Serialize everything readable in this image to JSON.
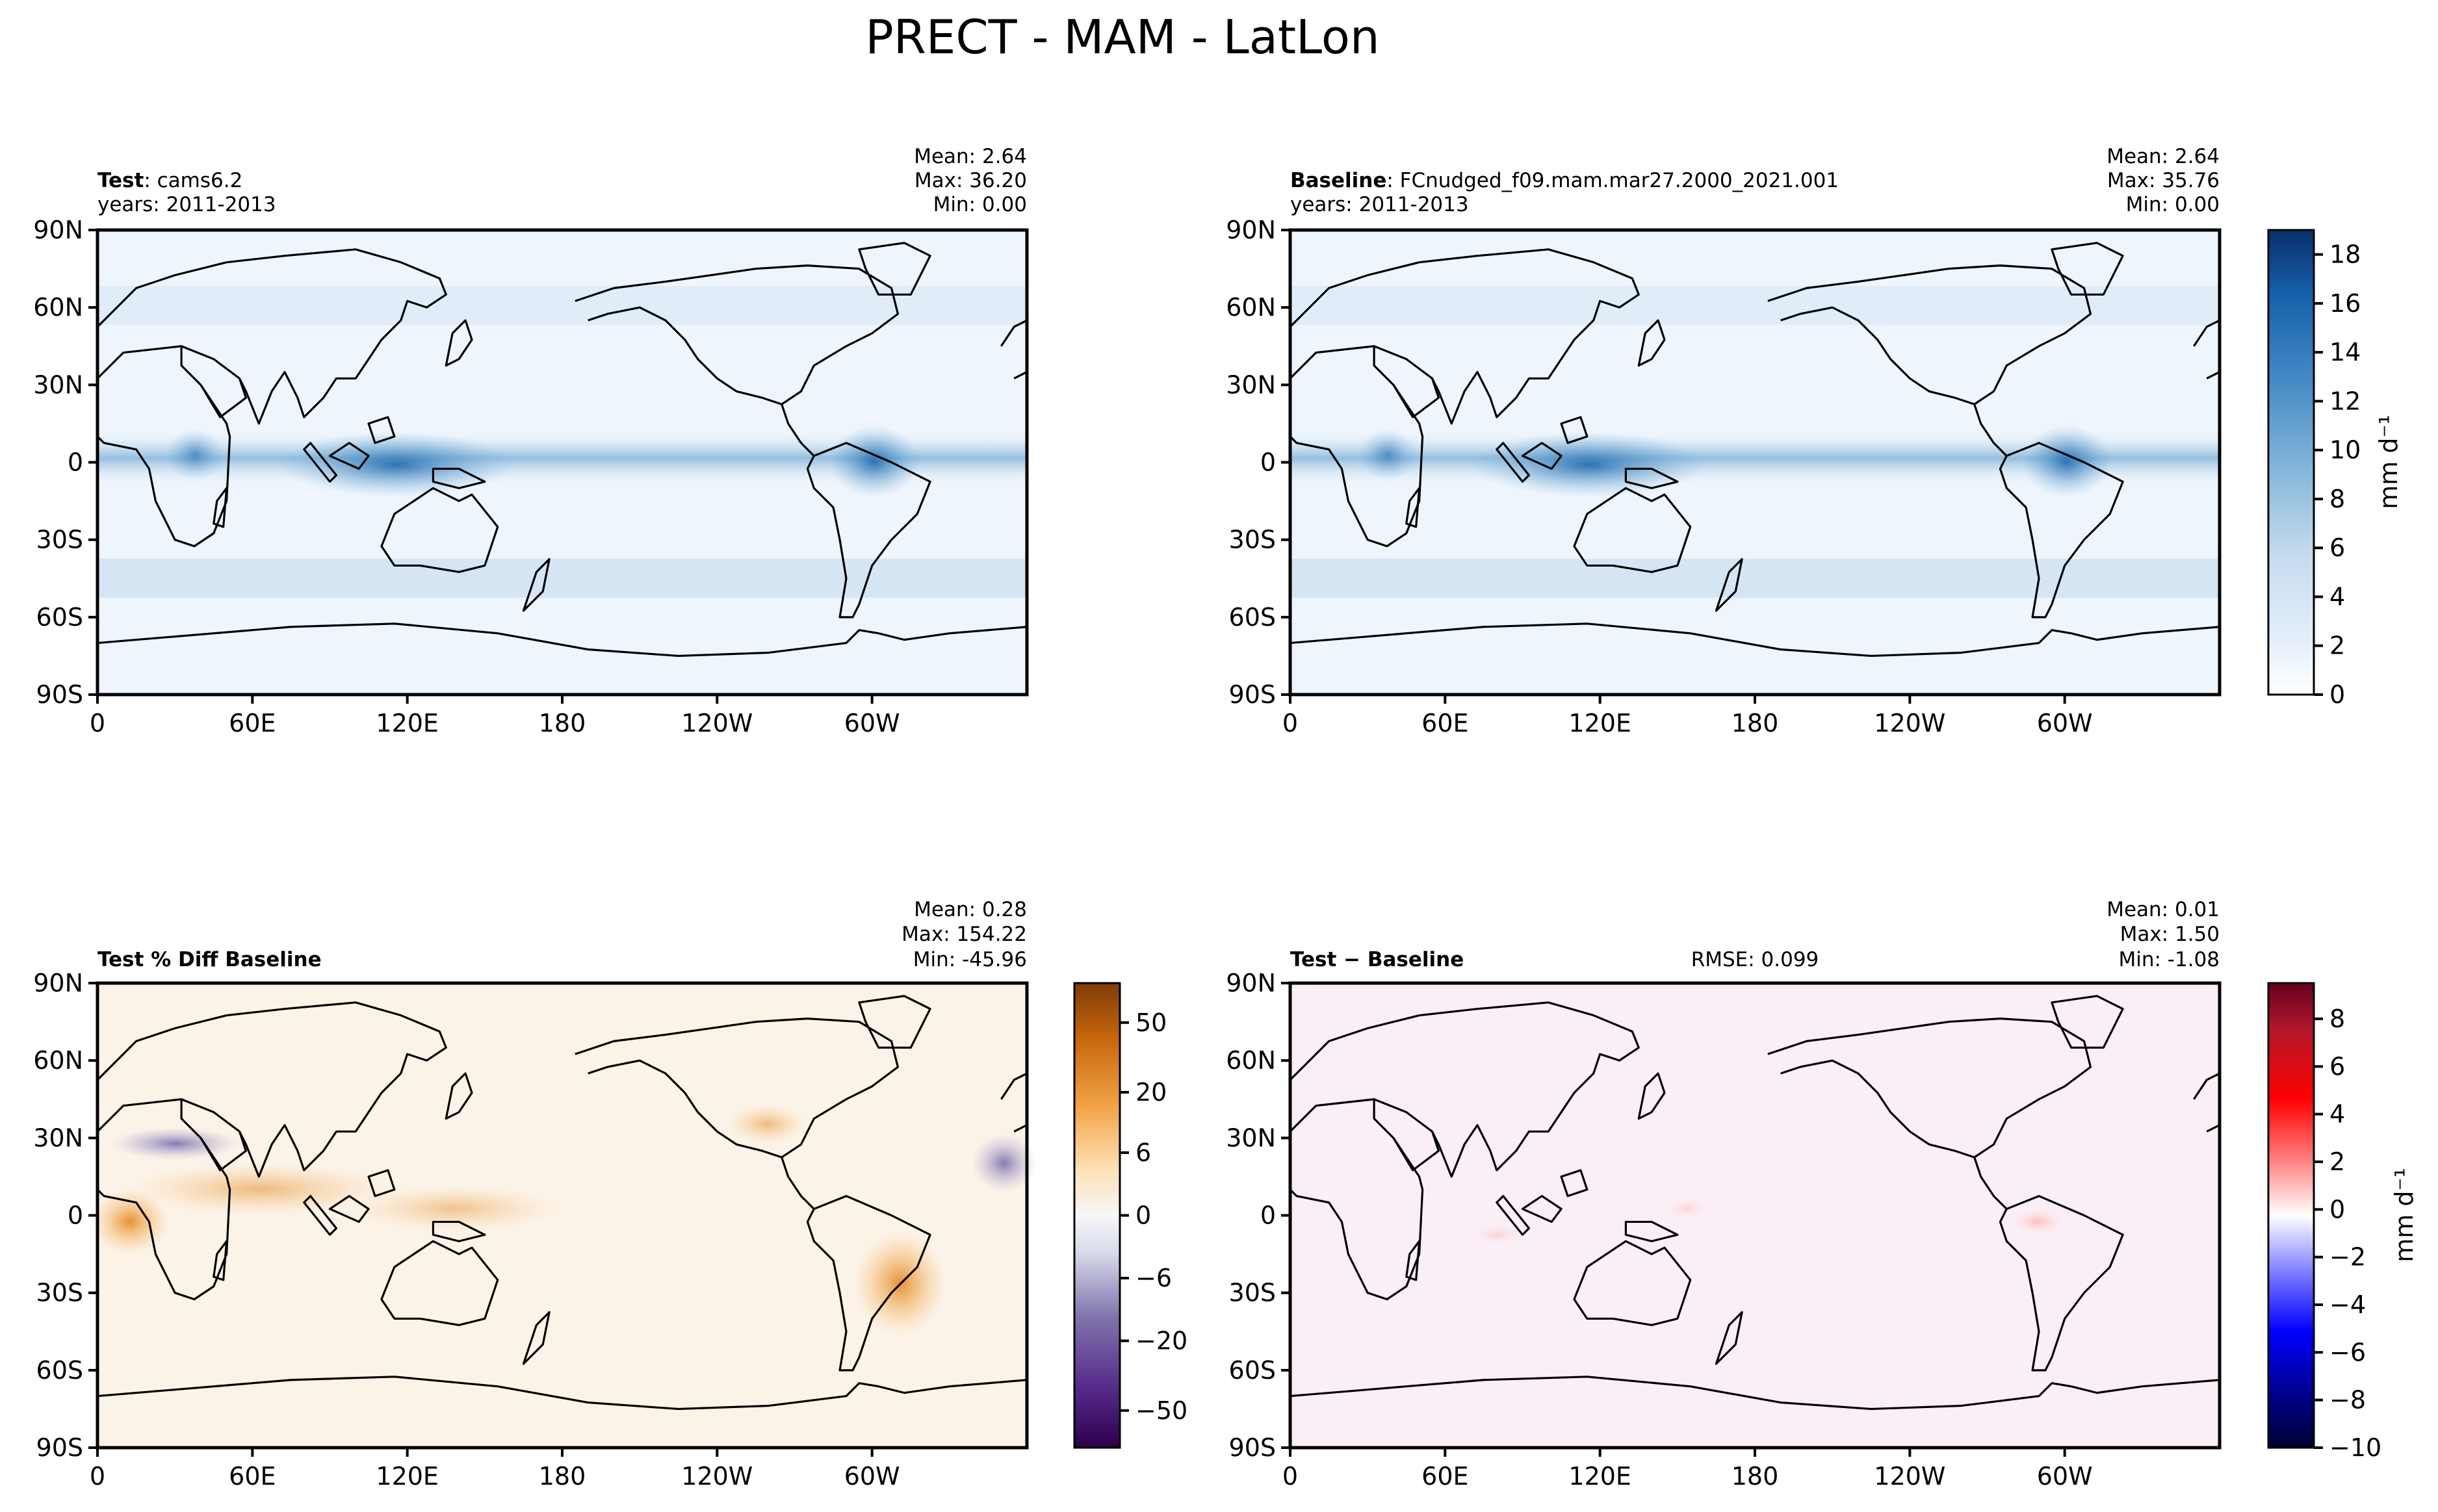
{
  "figure": {
    "title": "PRECT - MAM - LatLon"
  },
  "axes": {
    "lat_labels": [
      "90N",
      "60N",
      "30N",
      "0",
      "30S",
      "60S",
      "90S"
    ],
    "lon_labels": [
      "0",
      "60E",
      "120E",
      "180",
      "120W",
      "60W"
    ]
  },
  "panels": [
    {
      "id": "test",
      "label_bold": "Test",
      "label_rest": ": cams6.2",
      "years": "years: 2011-2013",
      "mean": "Mean:  2.64",
      "max": "Max: 36.20",
      "min": "Min:  0.00",
      "rmse": ""
    },
    {
      "id": "baseline",
      "label_bold": "Baseline",
      "label_rest": ": FCnudged_f09.mam.mar27.2000_2021.001",
      "years": "years: 2011-2013",
      "mean": "Mean:  2.64",
      "max": "Max: 35.76",
      "min": "Min:  0.00",
      "rmse": ""
    },
    {
      "id": "pctdiff",
      "label_bold": "Test % Diff Baseline",
      "label_rest": "",
      "years": "",
      "mean": "Mean:  0.28",
      "max": "Max: 154.22",
      "min": "Min: -45.96",
      "rmse": ""
    },
    {
      "id": "diff",
      "label_bold": "Test",
      "label_rest": " − Baseline",
      "years": "",
      "mean": "Mean:  0.01",
      "max": "Max:  1.50",
      "min": "Min: -1.08",
      "rmse": "RMSE: 0.099"
    }
  ],
  "colorbars": [
    {
      "id": "cb-precip",
      "ticks": [
        "18",
        "16",
        "14",
        "12",
        "10",
        "8",
        "6",
        "4",
        "2",
        "0"
      ],
      "label": "mm d⁻¹",
      "colormap": [
        "#f7fbff",
        "#deebf7",
        "#c6dbef",
        "#9ecae1",
        "#6baed6",
        "#4292c6",
        "#2171b5",
        "#08519c",
        "#08306b"
      ]
    },
    {
      "id": "cb-pct",
      "ticks": [
        "50",
        "20",
        "6",
        "0",
        "−6",
        "−20",
        "−50"
      ],
      "label": "",
      "colormap": [
        "#7f3b08",
        "#b35806",
        "#e08214",
        "#fdb863",
        "#fee0b6",
        "#f7f7f7",
        "#d8daeb",
        "#b2abd2",
        "#8073ac",
        "#542788",
        "#2d004b"
      ]
    },
    {
      "id": "cb-diff",
      "ticks": [
        "8",
        "6",
        "4",
        "2",
        "0",
        "−2",
        "−4",
        "−6",
        "−8",
        "−10"
      ],
      "label": "mm d⁻¹",
      "colormap": [
        "#67001f",
        "#b2182b",
        "#ff0000",
        "#ff8080",
        "#ffd5d5",
        "#ffffff",
        "#d5d5ff",
        "#8080ff",
        "#0000ff",
        "#00007f",
        "#000033"
      ]
    }
  ]
}
